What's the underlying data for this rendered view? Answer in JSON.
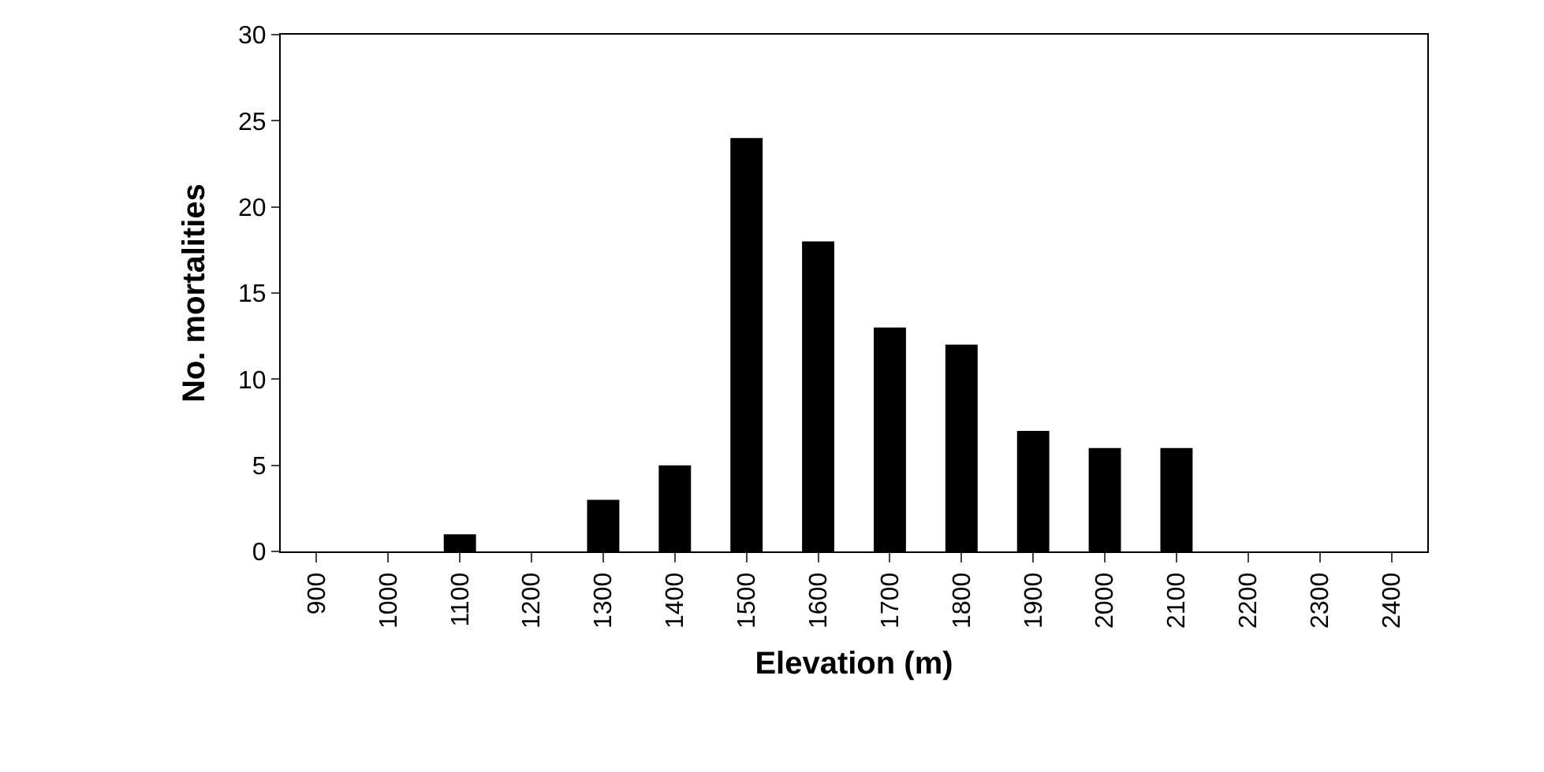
{
  "chart_data": {
    "type": "bar",
    "xlabel": "Elevation (m)",
    "ylabel": "No. mortalities",
    "categories": [
      "900",
      "1000",
      "1100",
      "1200",
      "1300",
      "1400",
      "1500",
      "1600",
      "1700",
      "1800",
      "1900",
      "2000",
      "2100",
      "2200",
      "2300",
      "2400"
    ],
    "values": [
      0,
      0,
      1,
      0,
      3,
      5,
      24,
      18,
      13,
      12,
      7,
      6,
      6,
      0,
      0,
      0
    ],
    "color": "#000000",
    "ylim": [
      0,
      30
    ],
    "yticks": [
      0,
      5,
      10,
      15,
      20,
      25,
      30
    ]
  }
}
